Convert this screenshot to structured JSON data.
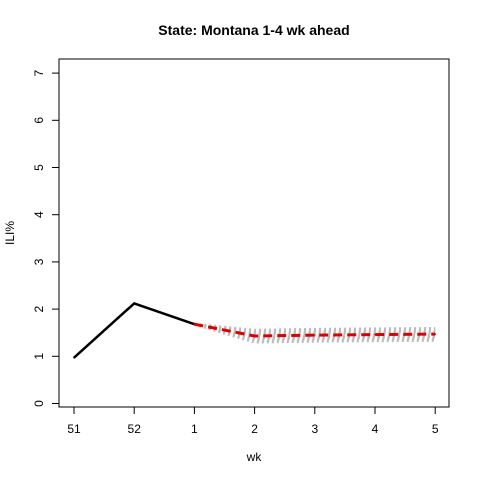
{
  "chart_data": {
    "type": "line",
    "title": "State: Montana 1-4 wk ahead",
    "xlabel": "wk",
    "ylabel": "ILI%",
    "x_ticks": [
      "51",
      "52",
      "1",
      "2",
      "3",
      "4",
      "5"
    ],
    "y_ticks": [
      "0",
      "1",
      "2",
      "3",
      "4",
      "5",
      "6",
      "7"
    ],
    "ylim": [
      0,
      7
    ],
    "grid": false,
    "observed": {
      "color": "#000000",
      "x": [
        "51",
        "52",
        "1"
      ],
      "values": [
        0.97,
        2.12,
        1.68
      ]
    },
    "forecast_median": {
      "color": "#dd0000",
      "x": [
        "1",
        "2",
        "3",
        "4",
        "5"
      ],
      "values": [
        1.68,
        1.43,
        1.45,
        1.46,
        1.47
      ]
    },
    "forecast_samples": {
      "color": "#bbbbbb",
      "x": [
        "1",
        "2",
        "3",
        "4",
        "5"
      ],
      "series": [
        [
          1.68,
          1.3,
          1.32,
          1.33,
          1.34
        ],
        [
          1.68,
          1.34,
          1.36,
          1.37,
          1.38
        ],
        [
          1.68,
          1.37,
          1.39,
          1.4,
          1.41
        ],
        [
          1.68,
          1.4,
          1.42,
          1.43,
          1.44
        ],
        [
          1.68,
          1.46,
          1.48,
          1.49,
          1.5
        ],
        [
          1.68,
          1.49,
          1.51,
          1.52,
          1.53
        ],
        [
          1.68,
          1.52,
          1.54,
          1.55,
          1.56
        ],
        [
          1.68,
          1.55,
          1.57,
          1.58,
          1.59
        ]
      ]
    }
  }
}
